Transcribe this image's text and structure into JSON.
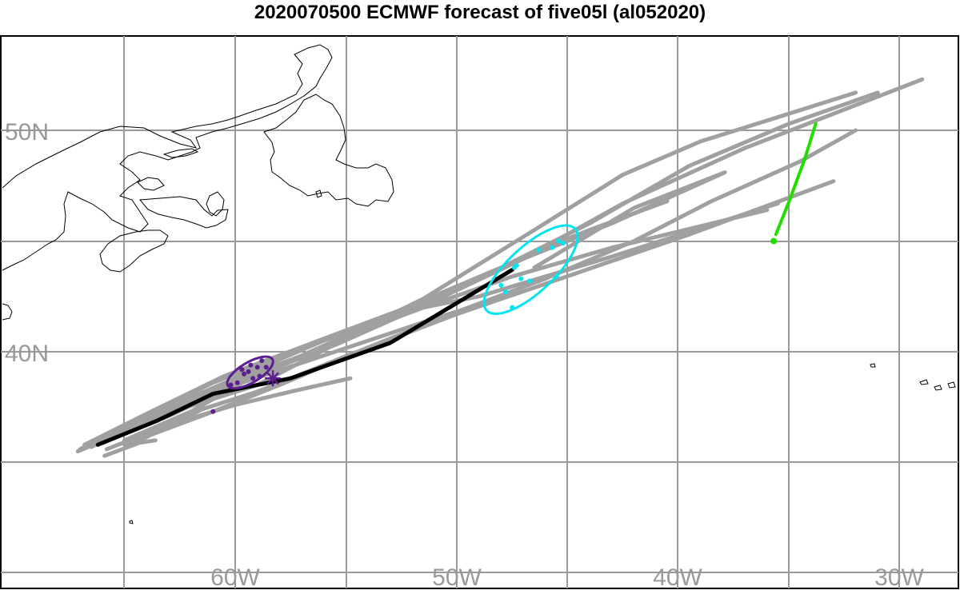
{
  "title": "2020070500 ECMWF forecast of five05l (al052020)",
  "chart_data": {
    "type": "map",
    "lon_labels": [
      "60W",
      "50W",
      "40W",
      "30W"
    ],
    "lat_labels": [
      "50N",
      "40N"
    ],
    "colors": {
      "ensemble": "#a0a0a0",
      "deterministic": "#000000",
      "day2": "#5b1f8f",
      "day4": "#00e5ee",
      "day6": "#22dd00",
      "coast": "#000000",
      "grid": "#999999"
    },
    "deterministic_track": [
      [
        -66.2,
        35.8
      ],
      [
        -63.5,
        36.9
      ],
      [
        -61.0,
        38.1
      ],
      [
        -57.5,
        38.8
      ],
      [
        -53.0,
        40.4
      ],
      [
        -47.5,
        43.7
      ]
    ],
    "ensemble_tracks": [
      [
        [
          -67.1,
          35.5
        ],
        [
          -64.0,
          36.8
        ],
        [
          -60.5,
          38.4
        ],
        [
          -55.5,
          40.3
        ],
        [
          -51.0,
          42.3
        ],
        [
          -47.0,
          44.2
        ],
        [
          -42.5,
          46.7
        ],
        [
          -37.0,
          49.2
        ],
        [
          -29.0,
          52.3
        ]
      ],
      [
        [
          -66.5,
          35.7
        ],
        [
          -63.5,
          37.2
        ],
        [
          -60.0,
          38.7
        ],
        [
          -56.0,
          40.2
        ],
        [
          -51.5,
          42.4
        ],
        [
          -46.5,
          45.5
        ],
        [
          -42.5,
          48.0
        ],
        [
          -39.0,
          49.5
        ],
        [
          -32.0,
          51.7
        ]
      ],
      [
        [
          -66.0,
          35.9
        ],
        [
          -63.0,
          37.5
        ],
        [
          -60.0,
          38.8
        ],
        [
          -56.0,
          40.5
        ],
        [
          -51.0,
          42.3
        ],
        [
          -46.5,
          44.5
        ],
        [
          -44.0,
          45.5
        ],
        [
          -40.5,
          46.8
        ]
      ],
      [
        [
          -65.5,
          36.1
        ],
        [
          -62.5,
          37.4
        ],
        [
          -59.0,
          38.5
        ],
        [
          -55.0,
          40.6
        ],
        [
          -50.5,
          42.6
        ],
        [
          -47.0,
          44.2
        ],
        [
          -43.0,
          45.8
        ],
        [
          -37.9,
          48.1
        ],
        [
          -42.0,
          46.5
        ],
        [
          -46.5,
          43.8
        ]
      ],
      [
        [
          -65.0,
          36.0
        ],
        [
          -62.0,
          37.3
        ],
        [
          -59.5,
          38.7
        ],
        [
          -55.5,
          40.5
        ],
        [
          -51.5,
          42.0
        ],
        [
          -47.5,
          43.4
        ],
        [
          -43.0,
          44.7
        ],
        [
          -36.0,
          46.4
        ]
      ],
      [
        [
          -64.5,
          35.9
        ],
        [
          -61.5,
          37.4
        ],
        [
          -59.0,
          38.2
        ],
        [
          -55.0,
          39.8
        ],
        [
          -50.0,
          41.7
        ],
        [
          -46.5,
          42.9
        ],
        [
          -39.5,
          45.3
        ],
        [
          -33.0,
          47.7
        ]
      ],
      [
        [
          -65.8,
          35.6
        ],
        [
          -63.0,
          36.7
        ],
        [
          -60.0,
          37.6
        ],
        [
          -57.5,
          38.2
        ],
        [
          -54.8,
          38.8
        ]
      ],
      [
        [
          -66.3,
          35.8
        ],
        [
          -63.0,
          37.1
        ],
        [
          -60.0,
          38.5
        ],
        [
          -55.5,
          40.0
        ],
        [
          -51.0,
          41.5
        ],
        [
          -47.5,
          42.6
        ]
      ],
      [
        [
          -65.0,
          35.8
        ],
        [
          -61.0,
          37.3
        ],
        [
          -58.0,
          38.5
        ],
        [
          -54.0,
          40.2
        ],
        [
          -50.0,
          41.8
        ],
        [
          -46.0,
          43.3
        ],
        [
          -42.0,
          45.0
        ],
        [
          -38.5,
          46.8
        ],
        [
          -34.5,
          48.6
        ],
        [
          -32.0,
          50.0
        ]
      ],
      [
        [
          -67.0,
          35.6
        ],
        [
          -64.5,
          36.9
        ],
        [
          -61.0,
          38.6
        ],
        [
          -57.5,
          40.0
        ],
        [
          -53.0,
          41.7
        ],
        [
          -49.0,
          42.5
        ],
        [
          -43.0,
          44.3
        ],
        [
          -35.5,
          46.7
        ]
      ],
      [
        [
          -66.8,
          35.8
        ],
        [
          -64.0,
          37.2
        ],
        [
          -60.5,
          38.9
        ],
        [
          -56.5,
          40.4
        ],
        [
          -52.5,
          41.9
        ],
        [
          -48.0,
          43.8
        ],
        [
          -44.0,
          45.8
        ],
        [
          -39.5,
          48.4
        ],
        [
          -35.0,
          50.3
        ],
        [
          -31.0,
          51.7
        ]
      ],
      [
        [
          -65.9,
          35.3
        ],
        [
          -64.3,
          35.9
        ],
        [
          -63.6,
          36.0
        ]
      ]
    ],
    "day2_points": [
      [
        -60.2,
        38.5
      ],
      [
        -59.9,
        38.6
      ],
      [
        -59.7,
        39.2
      ],
      [
        -59.4,
        39.1
      ],
      [
        -59.3,
        39.4
      ],
      [
        -59.0,
        39.3
      ],
      [
        -58.8,
        39.6
      ],
      [
        -58.6,
        39.3
      ],
      [
        -59.6,
        39.0
      ],
      [
        -59.2,
        38.8
      ],
      [
        -58.9,
        38.9
      ],
      [
        -61.0,
        37.3
      ]
    ],
    "day2_star": [
      -58.3,
      38.8
    ],
    "day4_points": [
      [
        -48.0,
        43.0
      ],
      [
        -47.8,
        42.7
      ],
      [
        -47.5,
        42.0
      ],
      [
        -47.3,
        43.9
      ],
      [
        -47.1,
        43.3
      ],
      [
        -46.7,
        43.2
      ],
      [
        -46.3,
        44.6
      ],
      [
        -45.7,
        44.7
      ],
      [
        -45.5,
        43.4
      ],
      [
        -45.4,
        45.0
      ],
      [
        -45.2,
        44.9
      ],
      [
        -47.4,
        43.8
      ]
    ],
    "day6_track": [
      [
        -33.8,
        50.3
      ],
      [
        -34.3,
        48.7
      ],
      [
        -35.0,
        46.8
      ],
      [
        -35.6,
        45.3
      ]
    ],
    "day6_point": [
      -35.7,
      45.0
    ]
  }
}
